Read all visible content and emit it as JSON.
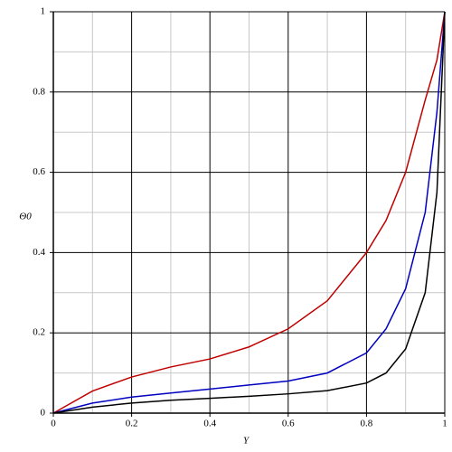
{
  "chart_data": {
    "type": "line",
    "x_label": "Y",
    "y_label": "Θ0",
    "x": [
      0,
      0.1,
      0.2,
      0.3,
      0.4,
      0.5,
      0.6,
      0.7,
      0.8,
      0.85,
      0.9,
      0.95,
      0.98,
      1
    ],
    "series": [
      {
        "color": "#c00000",
        "values": [
          0,
          0.055,
          0.09,
          0.115,
          0.135,
          0.165,
          0.21,
          0.28,
          0.4,
          0.48,
          0.6,
          0.78,
          0.88,
          1
        ]
      },
      {
        "color": "#0000c0",
        "values": [
          0,
          0.025,
          0.04,
          0.05,
          0.06,
          0.07,
          0.08,
          0.1,
          0.15,
          0.21,
          0.31,
          0.5,
          0.75,
          1
        ]
      },
      {
        "color": "#000000",
        "values": [
          0,
          0.015,
          0.025,
          0.032,
          0.037,
          0.042,
          0.048,
          0.056,
          0.075,
          0.1,
          0.16,
          0.3,
          0.55,
          1
        ]
      }
    ],
    "xlim": [
      0,
      1
    ],
    "ylim": [
      0,
      1
    ],
    "xticks": [
      0,
      0.2,
      0.4,
      0.6,
      0.8,
      1
    ],
    "yticks": [
      0,
      0.2,
      0.4,
      0.6,
      0.8,
      1
    ],
    "grid": true,
    "minor_grid": true
  }
}
